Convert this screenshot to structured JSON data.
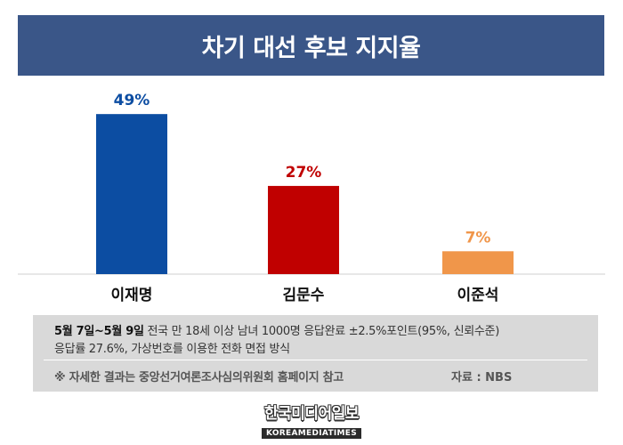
{
  "chart_data": {
    "type": "bar",
    "title": "차기 대선 후보 지지율",
    "categories": [
      "이재명",
      "김문수",
      "이준석"
    ],
    "values": [
      49,
      27,
      7
    ],
    "value_labels": [
      "49%",
      "27%",
      "7%"
    ],
    "unit": "%",
    "ylim": [
      0,
      60
    ],
    "colors": [
      "#0c4da2",
      "#c00000",
      "#f0964a"
    ],
    "grid": false,
    "legend": "none"
  },
  "footer": {
    "dates": "5월 7일~5월 9일",
    "line1_rest": "전국 만 18세 이상 남녀 1000명 응답완료 ±2.5%포인트(95%, 신뢰수준)",
    "line2": "응답률 27.6%, 가상번호를 이용한 전화 면접 방식",
    "note": "※ 자세한 결과는 중앙선거여론조사심의위원회 홈페이지 참고",
    "source": "자료 : NBS"
  },
  "logo": {
    "korean": "한국미디어일보",
    "english": "KOREAMEDIATIMES"
  }
}
